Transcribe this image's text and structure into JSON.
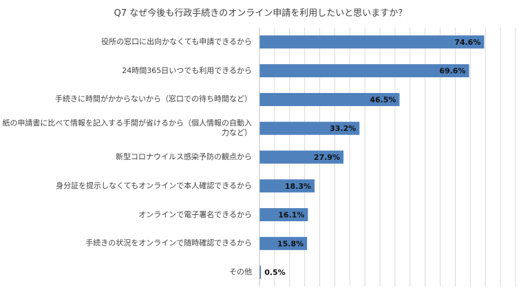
{
  "chart_data": {
    "type": "bar",
    "orientation": "horizontal",
    "title": "Q7 なぜ今後も行政手続きのオンライン申請を利用したいと思いますか？",
    "categories": [
      "役所の窓口に出向かなくても申請できるから",
      "24時間365日いつでも利用できるから",
      "手続きに時間がかからないから（窓口での待ち時間など）",
      "紙の申請書に比べて情報を記入する手間が省けるから（個人情報の自動入力など）",
      "新型コロナウイルス感染予防の観点から",
      "身分証を提示しなくてもオンラインで本人確認できるから",
      "オンラインで電子署名できるから",
      "手続きの状況をオンラインで随時確認できるから",
      "その他"
    ],
    "values": [
      74.6,
      69.6,
      46.5,
      33.2,
      27.9,
      18.3,
      16.1,
      15.8,
      0.5
    ],
    "value_labels": [
      "74.6%",
      "69.6%",
      "46.5%",
      "33.2%",
      "27.9%",
      "18.3%",
      "16.1%",
      "15.8%",
      "0.5%"
    ],
    "xlim": [
      0,
      85
    ],
    "grid": true,
    "bar_color": "#4f81bd",
    "grid_color": "#d9d9d9",
    "xlabel": "",
    "ylabel": ""
  }
}
